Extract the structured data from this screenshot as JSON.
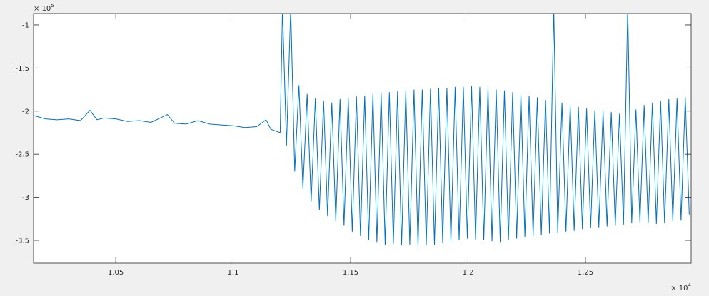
{
  "chart_data": {
    "type": "line",
    "x": [
      10150,
      10200,
      10250,
      10300,
      10350,
      10390,
      10420,
      10450,
      10500,
      10550,
      10600,
      10650,
      10720,
      10750,
      10800,
      10850,
      10900,
      10950,
      11000,
      11050,
      11100,
      11140,
      11160,
      11200,
      11210,
      11227,
      11245,
      11262,
      11280,
      11297,
      11315,
      11332,
      11350,
      11367,
      11385,
      11402,
      11420,
      11437,
      11455,
      11472,
      11490,
      11507,
      11525,
      11542,
      11560,
      11577,
      11595,
      11612,
      11630,
      11647,
      11665,
      11682,
      11700,
      11717,
      11735,
      11752,
      11770,
      11787,
      11805,
      11822,
      11840,
      11857,
      11875,
      11892,
      11910,
      11927,
      11945,
      11962,
      11980,
      11997,
      12015,
      12032,
      12050,
      12067,
      12085,
      12102,
      12120,
      12137,
      12155,
      12172,
      12190,
      12207,
      12225,
      12242,
      12260,
      12277,
      12295,
      12312,
      12330,
      12347,
      12365,
      12382,
      12400,
      12417,
      12435,
      12452,
      12470,
      12487,
      12505,
      12522,
      12540,
      12557,
      12575,
      12592,
      12610,
      12627,
      12645,
      12662,
      12680,
      12697,
      12715,
      12732,
      12750,
      12767,
      12785,
      12802,
      12820,
      12837,
      12855,
      12872,
      12890,
      12907,
      12925,
      12942
    ],
    "series": [
      {
        "color": "#0072bd",
        "values": [
          -205000,
          -209000,
          -210000,
          -209000,
          -211000,
          -199000,
          -210000,
          -208000,
          -209000,
          -212000,
          -211000,
          -213000,
          -204000,
          -214000,
          -215000,
          -211000,
          -215000,
          -216000,
          -217000,
          -219000,
          -218000,
          -210000,
          -221000,
          -225000,
          -80000,
          -240000,
          -80000,
          -270000,
          -170000,
          -290000,
          -180000,
          -305000,
          -185000,
          -315000,
          -188000,
          -322000,
          -190000,
          -328000,
          -186000,
          -333000,
          -185000,
          -340000,
          -183000,
          -345000,
          -182000,
          -350000,
          -180000,
          -352000,
          -179000,
          -355000,
          -178000,
          -354000,
          -177000,
          -356000,
          -176000,
          -355000,
          -175000,
          -357000,
          -175000,
          -356000,
          -174000,
          -355000,
          -173000,
          -353000,
          -173000,
          -352000,
          -172000,
          -350000,
          -172000,
          -348000,
          -171000,
          -349000,
          -172000,
          -350000,
          -173000,
          -351000,
          -175000,
          -352000,
          -176000,
          -350000,
          -178000,
          -348000,
          -180000,
          -346000,
          -182000,
          -345000,
          -184000,
          -344000,
          -187000,
          -342000,
          -80000,
          -341000,
          -190000,
          -340000,
          -193000,
          -339000,
          -195000,
          -337000,
          -197000,
          -336000,
          -199000,
          -335000,
          -200000,
          -334000,
          -201000,
          -333000,
          -203000,
          -332000,
          -80000,
          -330000,
          -198000,
          -329000,
          -193000,
          -330000,
          -190000,
          -331000,
          -188000,
          -330000,
          -186000,
          -328000,
          -185000,
          -327000,
          -184000,
          -320000
        ]
      }
    ],
    "xlim": [
      10150,
      12950
    ],
    "ylim": [
      -376500,
      -86800
    ],
    "xticks": [
      {
        "value": 10500,
        "label": "1.05"
      },
      {
        "value": 11000,
        "label": "1.1"
      },
      {
        "value": 11500,
        "label": "1.15"
      },
      {
        "value": 12000,
        "label": "1.2"
      },
      {
        "value": 12500,
        "label": "1.25"
      }
    ],
    "yticks": [
      {
        "value": -350000,
        "label": "-3.5"
      },
      {
        "value": -300000,
        "label": "-3"
      },
      {
        "value": -250000,
        "label": "-2.5"
      },
      {
        "value": -200000,
        "label": "-2"
      },
      {
        "value": -150000,
        "label": "-1.5"
      },
      {
        "value": -100000,
        "label": "-1"
      }
    ],
    "x_multiplier": {
      "base": "× 10",
      "exponent": "4"
    },
    "y_multiplier": {
      "base": "× 10",
      "exponent": "5"
    },
    "grid": false
  }
}
